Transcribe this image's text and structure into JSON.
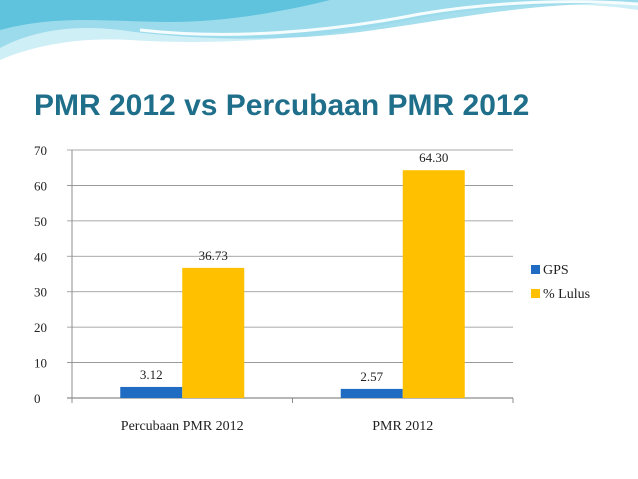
{
  "slide": {
    "title": "PMR 2012 vs Percubaan PMR 2012"
  },
  "colors": {
    "title": "#1F6F8B",
    "gps": "#1F6CC2",
    "lulus": "#FFC000",
    "grid": "#8C8C8C",
    "wave_light": "#CFEFF7",
    "wave_dark": "#5FC3DD"
  },
  "chart_data": {
    "type": "bar",
    "title": "",
    "xlabel": "",
    "ylabel": "",
    "categories": [
      "Percubaan PMR 2012",
      "PMR 2012"
    ],
    "series": [
      {
        "name": "GPS",
        "values": [
          3.12,
          2.57
        ],
        "labels": [
          "3.12",
          "2.57"
        ]
      },
      {
        "name": "% Lulus",
        "values": [
          36.73,
          64.3
        ],
        "labels": [
          "36.73",
          "64.30"
        ]
      }
    ],
    "ylim": [
      0,
      70
    ],
    "yticks": [
      0,
      10,
      20,
      30,
      40,
      50,
      60,
      70
    ],
    "grid": true,
    "legend": "right"
  }
}
